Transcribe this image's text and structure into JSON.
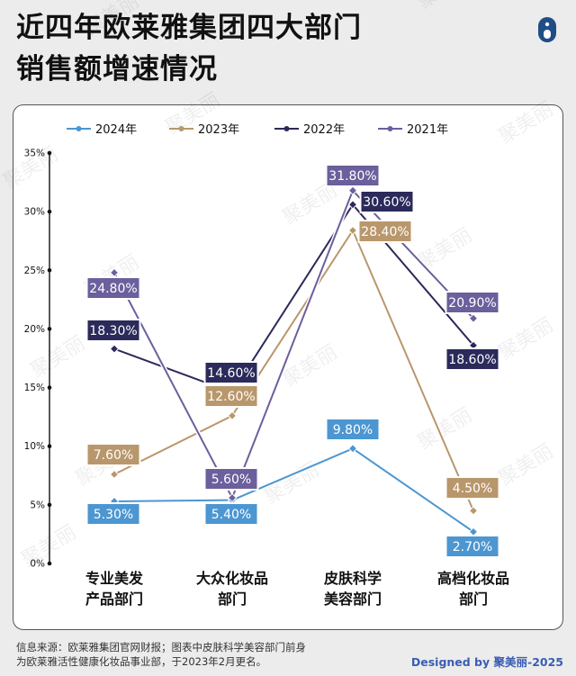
{
  "header": {
    "title_line1": "近四年欧莱雅集团四大部门",
    "title_line2": "销售额增速情况"
  },
  "footer": {
    "source_line1": "信息来源：欧莱雅集团官网财报；图表中皮肤科学美容部门前身",
    "source_line2": "为欧莱雅活性健康化妆品事业部，于2023年2月更名。",
    "designed_prefix": "Designed by ",
    "designed_brand": "聚美丽-2025"
  },
  "watermark": "聚美丽",
  "chart_data": {
    "type": "line",
    "title": "近四年欧莱雅集团四大部门销售额增速情况",
    "xlabel": "",
    "ylabel": "",
    "ylim": [
      0,
      35
    ],
    "yticks": [
      "0%",
      "5%",
      "10%",
      "15%",
      "20%",
      "25%",
      "30%",
      "35%"
    ],
    "categories": [
      [
        "专业美发",
        "产品部门"
      ],
      [
        "大众化妆品",
        "部门"
      ],
      [
        "皮肤科学",
        "美容部门"
      ],
      [
        "高档化妆品",
        "部门"
      ]
    ],
    "series": [
      {
        "name": "2021年",
        "color": "#6b5f9c",
        "values": [
          24.8,
          5.6,
          31.8,
          20.9
        ],
        "labels": [
          "24.80%",
          "5.60%",
          "31.80%",
          "20.90%"
        ]
      },
      {
        "name": "2022年",
        "color": "#2b2a5b",
        "values": [
          18.3,
          14.6,
          30.6,
          18.6
        ],
        "labels": [
          "18.30%",
          "14.60%",
          "30.60%",
          "18.60%"
        ]
      },
      {
        "name": "2023年",
        "color": "#b9976c",
        "values": [
          7.6,
          12.6,
          28.4,
          4.5
        ],
        "labels": [
          "7.60%",
          "12.60%",
          "28.40%",
          "4.50%"
        ]
      },
      {
        "name": "2024年",
        "color": "#4c96d1",
        "values": [
          5.3,
          5.4,
          9.8,
          2.7
        ],
        "labels": [
          "5.30%",
          "5.40%",
          "9.80%",
          "2.70%"
        ]
      }
    ],
    "legend_order": [
      "2024年",
      "2023年",
      "2022年",
      "2021年"
    ],
    "legend_position": "top"
  }
}
